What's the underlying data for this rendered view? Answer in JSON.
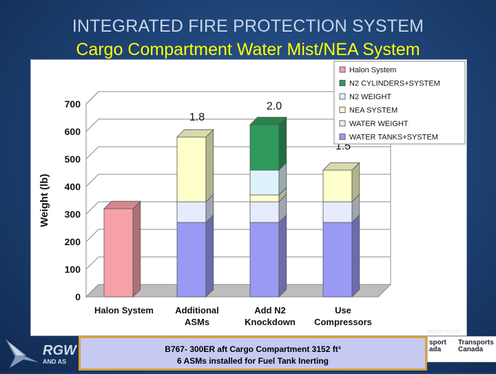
{
  "slide": {
    "title": "INTEGRATED FIRE PROTECTION SYSTEM",
    "subtitle": "Cargo Compartment Water Mist/NEA System",
    "note_line1": "B767- 300ER aft Cargo Compartment 3152 ft³",
    "note_line2": "6 ASMs installed for Fuel Tank Inerting",
    "logo_left_text": "RGW",
    "logo_left_sub": "AND AS",
    "logo_right_a": "sport\nada",
    "logo_right_b": "Transports\nCanada",
    "file_label": "Weight v0.d.xls"
  },
  "chart_data": {
    "type": "bar",
    "stacked": true,
    "three_d": true,
    "ylabel": "Weight (lb)",
    "ylim": [
      0,
      700
    ],
    "yticks": [
      0,
      100,
      200,
      300,
      400,
      500,
      600,
      700
    ],
    "categories": [
      "Halon System",
      "Additional ASMs",
      "Add N2 Knockdown",
      "Use Compressors"
    ],
    "category_lines": [
      [
        "Halon System"
      ],
      [
        "Additional",
        "ASMs"
      ],
      [
        "Add N2",
        "Knockdown"
      ],
      [
        "Use",
        "Compressors"
      ]
    ],
    "annotations": [
      "",
      "1.8",
      "2.0",
      "1.5"
    ],
    "legend_position": "top-right",
    "series": [
      {
        "name": "WATER TANKS+SYSTEM",
        "color": "#9a9af5",
        "values": [
          0,
          270,
          270,
          270
        ]
      },
      {
        "name": "WATER WEIGHT",
        "color": "#e6ecfb",
        "values": [
          0,
          75,
          75,
          75
        ]
      },
      {
        "name": "NEA SYSTEM",
        "color": "#ffffcc",
        "values": [
          0,
          235,
          25,
          115
        ]
      },
      {
        "name": "N2 WEIGHT",
        "color": "#ddf3fb",
        "values": [
          0,
          0,
          90,
          0
        ]
      },
      {
        "name": "N2 CYLINDERS+SYSTEM",
        "color": "#2f9a5c",
        "values": [
          0,
          0,
          165,
          0
        ]
      },
      {
        "name": "Halon System",
        "color": "#f7a0a8",
        "values": [
          320,
          0,
          0,
          0
        ]
      }
    ],
    "legend_order": [
      "Halon System",
      "N2 CYLINDERS+SYSTEM",
      "N2 WEIGHT",
      "NEA SYSTEM",
      "WATER WEIGHT",
      "WATER TANKS+SYSTEM"
    ]
  }
}
